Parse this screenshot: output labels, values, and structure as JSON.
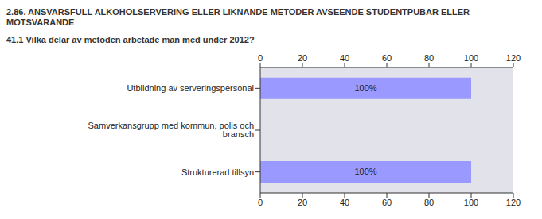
{
  "chart_data": {
    "type": "bar",
    "title": "2.86. ANSVARSFULL ALKOHOLSERVERING ELLER LIKNANDE METODER AVSEENDE STUDENTPUBAR ELLER MOTSVARANDE",
    "subtitle": "41.1 Vilka delar av metoden arbetade man med under 2012?",
    "orientation": "horizontal",
    "categories": [
      "Utbildning av serveringspersonal",
      "Samverkansgrupp med kommun, polis och bransch",
      "Strukturerad tillsyn"
    ],
    "values": [
      100,
      null,
      100
    ],
    "value_labels": [
      "100%",
      null,
      "100%"
    ],
    "data_labels": true,
    "color": "#9999ff",
    "xlim": [
      0,
      120
    ],
    "xticks": [
      0,
      20,
      40,
      60,
      80,
      100,
      120
    ],
    "grid": false
  }
}
